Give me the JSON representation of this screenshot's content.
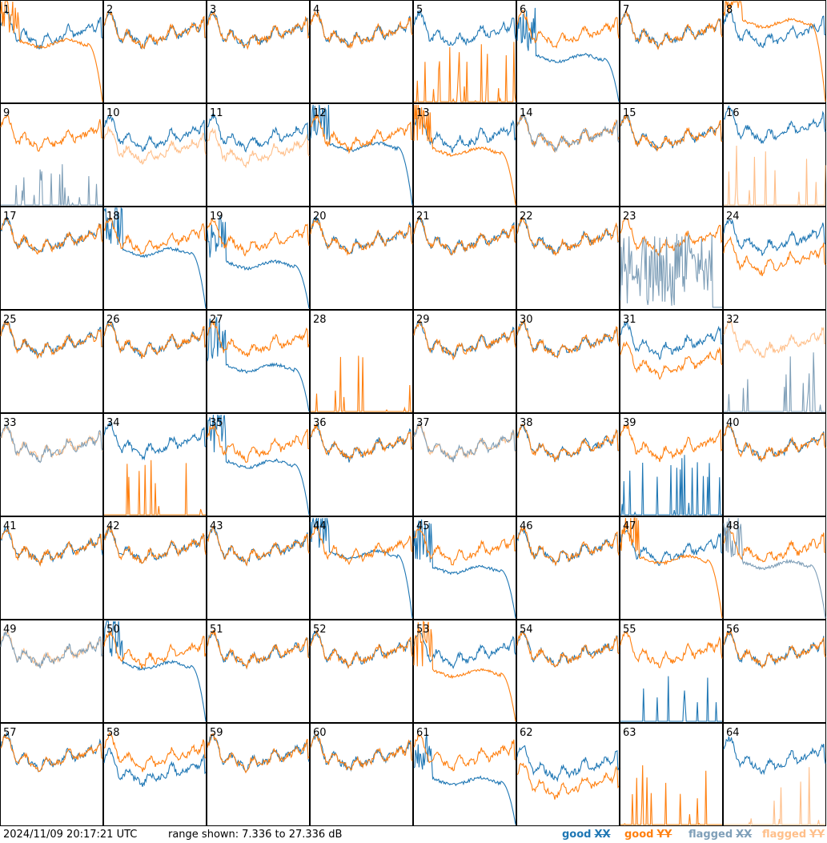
{
  "header": {
    "timestamp": "2024/11/09 20:17:21 UTC",
    "range_prefix": "range shown:",
    "range_value": "7.336 to 27.336 dB"
  },
  "legend": [
    {
      "id": "good-xx",
      "word": "good",
      "tag": "XX",
      "color": "#1f77b4"
    },
    {
      "id": "good-yy",
      "word": "good",
      "tag": "YY",
      "color": "#ff7f0e"
    },
    {
      "id": "flagged-xx",
      "word": "flagged",
      "tag": "XX",
      "color": "#7f9fb8"
    },
    {
      "id": "flagged-yy",
      "word": "flagged",
      "tag": "YY",
      "color": "#ffbf8a"
    }
  ],
  "chart_data": {
    "type": "line",
    "layout": "8x8 small multiples (antenna spectra)",
    "ylim": [
      7.336,
      27.336
    ],
    "y_unit": "dB",
    "series_keys": [
      "XX",
      "YY"
    ],
    "colors": {
      "good_xx": "#1f77b4",
      "good_yy": "#ff7f0e",
      "flagged_xx": "#7f9fb8",
      "flagged_yy": "#ffbf8a"
    },
    "panels": [
      {
        "id": "1",
        "xx": "good",
        "yy": "good",
        "xx_shape": "normal",
        "yy_shape": "rolloff",
        "yy_level": 19
      },
      {
        "id": "2",
        "xx": "good",
        "yy": "good"
      },
      {
        "id": "3",
        "xx": "good",
        "yy": "good"
      },
      {
        "id": "4",
        "xx": "good",
        "yy": "good"
      },
      {
        "id": "5",
        "xx": "good",
        "yy": "good",
        "xx_shape": "normal",
        "xx_level": 21.5,
        "yy_shape": "spikes"
      },
      {
        "id": "6",
        "xx": "good",
        "yy": "good",
        "xx_shape": "rolloff",
        "xx_level": 16,
        "yy_shape": "normal"
      },
      {
        "id": "7",
        "xx": "good",
        "yy": "good"
      },
      {
        "id": "8",
        "xx": "good",
        "yy": "good",
        "xx_shape": "normal",
        "yy_shape": "rolloff",
        "yy_level": 23
      },
      {
        "id": "9",
        "xx": "flagged",
        "yy": "good",
        "xx_shape": "spikes",
        "yy_shape": "normal"
      },
      {
        "id": "10",
        "xx": "good",
        "yy": "flagged",
        "xx_shape": "normal",
        "yy_level": 19
      },
      {
        "id": "11",
        "xx": "good",
        "yy": "flagged",
        "xx_shape": "normal",
        "yy_level": 18.5
      },
      {
        "id": "12",
        "xx": "good",
        "yy": "good",
        "xx_shape": "rolloff",
        "xx_level": 19
      },
      {
        "id": "13",
        "xx": "good",
        "yy": "good",
        "xx_shape": "normal",
        "yy_shape": "rolloff",
        "yy_level": 18
      },
      {
        "id": "14",
        "xx": "flagged",
        "yy": "good"
      },
      {
        "id": "15",
        "xx": "good",
        "yy": "good"
      },
      {
        "id": "16",
        "xx": "good",
        "yy": "flagged",
        "xx_shape": "normal",
        "xx_level": 23,
        "yy_shape": "spikes"
      },
      {
        "id": "17",
        "xx": "good",
        "yy": "good"
      },
      {
        "id": "18",
        "xx": "good",
        "yy": "good",
        "xx_shape": "rolloff",
        "xx_level": 18.5
      },
      {
        "id": "19",
        "xx": "good",
        "yy": "good",
        "xx_shape": "rolloff",
        "xx_level": 16
      },
      {
        "id": "20",
        "xx": "good",
        "yy": "good"
      },
      {
        "id": "21",
        "xx": "good",
        "yy": "good"
      },
      {
        "id": "22",
        "xx": "good",
        "yy": "good"
      },
      {
        "id": "23",
        "xx": "flagged",
        "yy": "good",
        "xx_shape": "noise",
        "yy_shape": "normal"
      },
      {
        "id": "24",
        "xx": "good",
        "yy": "good",
        "yy_level": 17.5
      },
      {
        "id": "25",
        "xx": "good",
        "yy": "good"
      },
      {
        "id": "26",
        "xx": "good",
        "yy": "good"
      },
      {
        "id": "27",
        "xx": "good",
        "yy": "good",
        "xx_shape": "rolloff",
        "xx_level": 16
      },
      {
        "id": "28",
        "xx": "good",
        "yy": "good",
        "xx_shape": "none",
        "yy_shape": "spikes"
      },
      {
        "id": "29",
        "xx": "good",
        "yy": "good"
      },
      {
        "id": "30",
        "xx": "good",
        "yy": "good"
      },
      {
        "id": "31",
        "xx": "good",
        "yy": "good",
        "yy_level": 17.5
      },
      {
        "id": "32",
        "xx": "flagged",
        "yy": "flagged",
        "xx_shape": "spikes",
        "yy_shape": "normal"
      },
      {
        "id": "33",
        "xx": "flagged",
        "yy": "flagged"
      },
      {
        "id": "34",
        "xx": "good",
        "yy": "good",
        "xx_shape": "normal",
        "xx_level": 22,
        "yy_shape": "spikes"
      },
      {
        "id": "35",
        "xx": "good",
        "yy": "good",
        "xx_shape": "rolloff",
        "xx_level": 17.5
      },
      {
        "id": "36",
        "xx": "good",
        "yy": "good"
      },
      {
        "id": "37",
        "xx": "flagged",
        "yy": "flagged"
      },
      {
        "id": "38",
        "xx": "good",
        "yy": "good"
      },
      {
        "id": "39",
        "xx": "good",
        "yy": "good",
        "xx_shape": "spikes",
        "yy_shape": "normal"
      },
      {
        "id": "40",
        "xx": "good",
        "yy": "good"
      },
      {
        "id": "41",
        "xx": "good",
        "yy": "good"
      },
      {
        "id": "42",
        "xx": "good",
        "yy": "good"
      },
      {
        "id": "43",
        "xx": "good",
        "yy": "good"
      },
      {
        "id": "44",
        "xx": "good",
        "yy": "good",
        "xx_shape": "rolloff",
        "xx_level": 20
      },
      {
        "id": "45",
        "xx": "good",
        "yy": "good",
        "xx_shape": "rolloff",
        "xx_level": 17
      },
      {
        "id": "46",
        "xx": "good",
        "yy": "good"
      },
      {
        "id": "47",
        "xx": "good",
        "yy": "good",
        "xx_shape": "normal",
        "yy_shape": "rolloff",
        "yy_level": 19
      },
      {
        "id": "48",
        "xx": "flagged",
        "yy": "good",
        "xx_shape": "rolloff",
        "xx_level": 18
      },
      {
        "id": "49",
        "xx": "flagged",
        "yy": "flagged"
      },
      {
        "id": "50",
        "xx": "good",
        "yy": "good",
        "xx_shape": "rolloff",
        "xx_level": 18.5
      },
      {
        "id": "51",
        "xx": "good",
        "yy": "good"
      },
      {
        "id": "52",
        "xx": "good",
        "yy": "good"
      },
      {
        "id": "53",
        "xx": "good",
        "yy": "good",
        "xx_shape": "normal",
        "yy_shape": "rolloff",
        "yy_level": 17
      },
      {
        "id": "54",
        "xx": "good",
        "yy": "good"
      },
      {
        "id": "55",
        "xx": "good",
        "yy": "good",
        "xx_shape": "spikes",
        "yy_shape": "normal"
      },
      {
        "id": "56",
        "xx": "good",
        "yy": "good"
      },
      {
        "id": "57",
        "xx": "good",
        "yy": "good"
      },
      {
        "id": "58",
        "xx": "good",
        "yy": "good",
        "xx_level": 18.5
      },
      {
        "id": "59",
        "xx": "good",
        "yy": "good"
      },
      {
        "id": "60",
        "xx": "good",
        "yy": "good"
      },
      {
        "id": "61",
        "xx": "good",
        "yy": "good",
        "xx_shape": "rolloff",
        "xx_level": 16
      },
      {
        "id": "62",
        "xx": "good",
        "yy": "good",
        "xx_shape": "normal",
        "xx_level": 19.5,
        "yy_level": 16
      },
      {
        "id": "63",
        "xx": "good",
        "yy": "good",
        "xx_shape": "none",
        "yy_shape": "spikes"
      },
      {
        "id": "64",
        "xx": "good",
        "yy": "flagged",
        "xx_shape": "normal",
        "xx_level": 21,
        "yy_shape": "spikes"
      }
    ]
  }
}
